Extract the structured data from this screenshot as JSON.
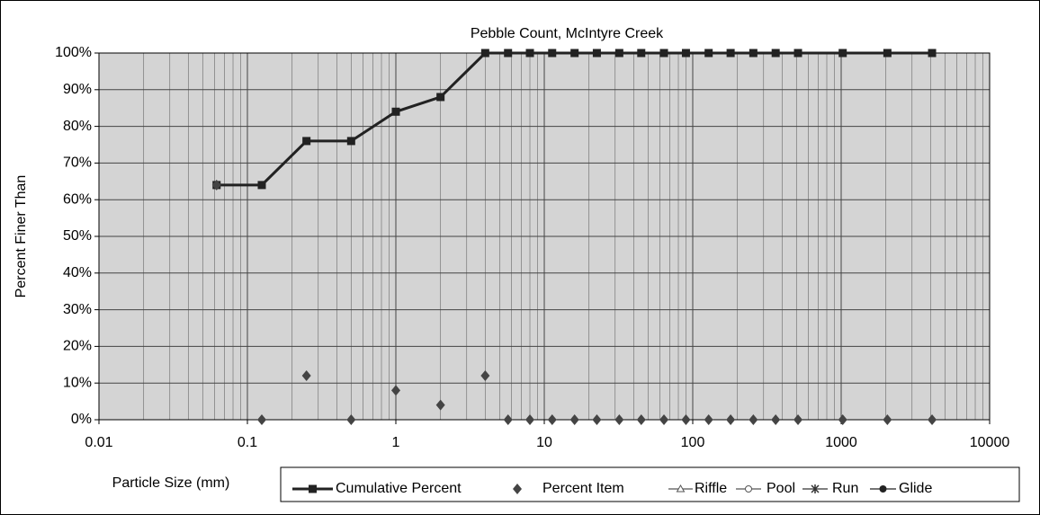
{
  "chart_data": {
    "type": "line",
    "title": "Pebble Count,  McIntyre Creek",
    "x_label": "Particle Size (mm)",
    "y_label": "Percent Finer Than",
    "x": [
      0.062,
      0.125,
      0.25,
      0.5,
      1,
      2,
      4,
      5.7,
      8,
      11.3,
      16,
      22.6,
      32,
      45,
      64,
      90,
      128,
      180,
      256,
      362,
      512,
      1024,
      2048,
      4096
    ],
    "series": [
      {
        "name": "Cumulative Percent",
        "color": "#222222",
        "marker": "square",
        "line": true,
        "values": [
          64,
          64,
          76,
          76,
          84,
          88,
          100,
          100,
          100,
          100,
          100,
          100,
          100,
          100,
          100,
          100,
          100,
          100,
          100,
          100,
          100,
          100,
          100,
          100
        ]
      },
      {
        "name": "Percent Item",
        "color": "#444444",
        "marker": "diamond",
        "line": false,
        "values": [
          64,
          0,
          12,
          0,
          8,
          4,
          12,
          0,
          0,
          0,
          0,
          0,
          0,
          0,
          0,
          0,
          0,
          0,
          0,
          0,
          0,
          0,
          0,
          0
        ]
      },
      {
        "name": "Riffle",
        "color": "#555555",
        "marker": "triangle",
        "line": true
      },
      {
        "name": "Pool",
        "color": "#555555",
        "marker": "circle",
        "line": true
      },
      {
        "name": "Run",
        "color": "#333333",
        "marker": "star",
        "line": true
      },
      {
        "name": "Glide",
        "color": "#222222",
        "marker": "dot",
        "line": true
      }
    ],
    "xscale": "log",
    "xlim": [
      0.01,
      10000
    ],
    "xticks": [
      0.01,
      0.1,
      1,
      10,
      100,
      1000,
      10000
    ],
    "ylim": [
      0,
      100
    ],
    "yticks": [
      {
        "value": 0,
        "label": "0%"
      },
      {
        "value": 10,
        "label": "10%"
      },
      {
        "value": 20,
        "label": "20%"
      },
      {
        "value": 30,
        "label": "30%"
      },
      {
        "value": 40,
        "label": "40%"
      },
      {
        "value": 50,
        "label": "50%"
      },
      {
        "value": 60,
        "label": "60%"
      },
      {
        "value": 70,
        "label": "70%"
      },
      {
        "value": 80,
        "label": "80%"
      },
      {
        "value": 90,
        "label": "90%"
      },
      {
        "value": 100,
        "label": "100%"
      }
    ],
    "grid": true,
    "minor_grid": true,
    "legend": "bottom"
  }
}
